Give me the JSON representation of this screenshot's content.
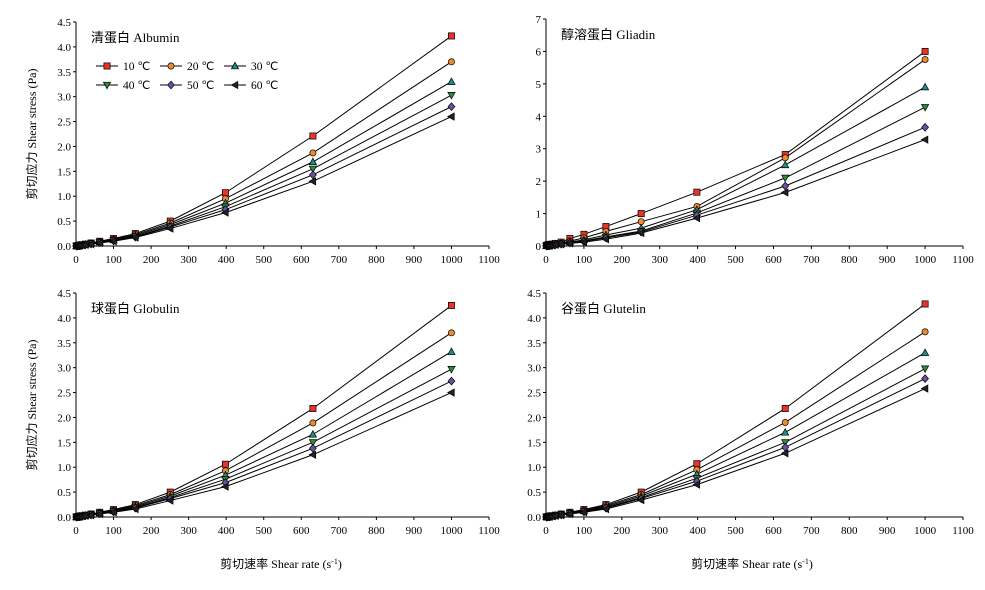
{
  "figure": {
    "xlabel": "剪切速率 Shear rate (s",
    "xlabel_sup": "-1",
    "xlabel_close": ")",
    "ylabel": "剪切应力 Shear stress (Pa)"
  },
  "legend_entries": [
    {
      "label": "10 ℃",
      "color": "#e8322c",
      "marker": "square"
    },
    {
      "label": "20 ℃",
      "color": "#f08a2c",
      "marker": "circle"
    },
    {
      "label": "30 ℃",
      "color": "#1f8f86",
      "marker": "triangle-up"
    },
    {
      "label": "40 ℃",
      "color": "#2e8b3a",
      "marker": "triangle-down"
    },
    {
      "label": "50 ℃",
      "color": "#6a4fa3",
      "marker": "diamond"
    },
    {
      "label": "60 ℃",
      "color": "#222222",
      "marker": "triangle-left"
    }
  ],
  "chart_data": [
    {
      "type": "line",
      "title": "清蛋白 Albumin",
      "xlim": [
        0,
        1100
      ],
      "ylim": [
        0,
        4.5
      ],
      "xticks": [
        0,
        100,
        200,
        300,
        400,
        500,
        600,
        700,
        800,
        900,
        1000,
        1100
      ],
      "yticks": [
        "0.0",
        "0.5",
        "1.0",
        "1.5",
        "2.0",
        "2.5",
        "3.0",
        "3.5",
        "4.0",
        "4.5"
      ],
      "x": [
        1,
        2,
        4,
        6,
        10,
        16,
        25,
        40,
        63,
        100,
        158,
        251,
        398,
        631,
        1000
      ],
      "series": [
        {
          "name": "10 ℃",
          "values": [
            0.001,
            0.003,
            0.006,
            0.009,
            0.015,
            0.024,
            0.037,
            0.06,
            0.095,
            0.15,
            0.25,
            0.5,
            1.07,
            2.21,
            4.22
          ]
        },
        {
          "name": "20 ℃",
          "values": [
            0.001,
            0.003,
            0.005,
            0.008,
            0.013,
            0.021,
            0.033,
            0.053,
            0.085,
            0.135,
            0.23,
            0.46,
            0.95,
            1.87,
            3.7
          ]
        },
        {
          "name": "30 ℃",
          "values": [
            0.001,
            0.002,
            0.005,
            0.007,
            0.012,
            0.019,
            0.03,
            0.048,
            0.077,
            0.122,
            0.21,
            0.43,
            0.86,
            1.69,
            3.3
          ]
        },
        {
          "name": "40 ℃",
          "values": [
            0.001,
            0.002,
            0.004,
            0.006,
            0.011,
            0.017,
            0.027,
            0.044,
            0.07,
            0.111,
            0.19,
            0.4,
            0.79,
            1.55,
            3.03
          ]
        },
        {
          "name": "50 ℃",
          "values": [
            0.001,
            0.002,
            0.004,
            0.006,
            0.01,
            0.016,
            0.025,
            0.04,
            0.065,
            0.103,
            0.18,
            0.38,
            0.73,
            1.43,
            2.8
          ]
        },
        {
          "name": "60 ℃",
          "values": [
            0.001,
            0.002,
            0.004,
            0.005,
            0.009,
            0.015,
            0.023,
            0.037,
            0.06,
            0.095,
            0.17,
            0.35,
            0.67,
            1.3,
            2.6
          ]
        }
      ]
    },
    {
      "type": "line",
      "title": "醇溶蛋白 Gliadin",
      "xlim": [
        0,
        1100
      ],
      "ylim": [
        0,
        7
      ],
      "xticks": [
        0,
        100,
        200,
        300,
        400,
        500,
        600,
        700,
        800,
        900,
        1000,
        1100
      ],
      "yticks": [
        "0",
        "1",
        "2",
        "3",
        "4",
        "5",
        "6",
        "7"
      ],
      "x": [
        1,
        2,
        4,
        6,
        10,
        16,
        25,
        40,
        63,
        100,
        158,
        251,
        398,
        631,
        1000
      ],
      "series": [
        {
          "name": "10 ℃",
          "values": [
            0.01,
            0.02,
            0.03,
            0.04,
            0.05,
            0.06,
            0.08,
            0.12,
            0.23,
            0.36,
            0.6,
            1.0,
            1.66,
            2.82,
            6.0
          ]
        },
        {
          "name": "20 ℃",
          "values": [
            0.005,
            0.01,
            0.015,
            0.02,
            0.03,
            0.04,
            0.06,
            0.09,
            0.15,
            0.25,
            0.45,
            0.75,
            1.22,
            2.72,
            5.75
          ]
        },
        {
          "name": "30 ℃",
          "values": [
            0.004,
            0.008,
            0.012,
            0.016,
            0.025,
            0.035,
            0.05,
            0.07,
            0.12,
            0.19,
            0.34,
            0.55,
            1.12,
            2.5,
            4.9
          ]
        },
        {
          "name": "40 ℃",
          "values": [
            0.003,
            0.006,
            0.01,
            0.014,
            0.02,
            0.03,
            0.045,
            0.06,
            0.1,
            0.16,
            0.28,
            0.46,
            1.02,
            2.1,
            4.28
          ]
        },
        {
          "name": "50 ℃",
          "values": [
            0.003,
            0.005,
            0.008,
            0.012,
            0.018,
            0.026,
            0.04,
            0.055,
            0.09,
            0.14,
            0.25,
            0.43,
            0.95,
            1.85,
            3.66
          ]
        },
        {
          "name": "60 ℃",
          "values": [
            0.002,
            0.004,
            0.007,
            0.01,
            0.015,
            0.022,
            0.035,
            0.05,
            0.08,
            0.12,
            0.21,
            0.4,
            0.86,
            1.65,
            3.28
          ]
        }
      ]
    },
    {
      "type": "line",
      "title": "球蛋白 Globulin",
      "xlim": [
        0,
        1100
      ],
      "ylim": [
        0,
        4.5
      ],
      "xticks": [
        0,
        100,
        200,
        300,
        400,
        500,
        600,
        700,
        800,
        900,
        1000,
        1100
      ],
      "yticks": [
        "0.0",
        "0.5",
        "1.0",
        "1.5",
        "2.0",
        "2.5",
        "3.0",
        "3.5",
        "4.0",
        "4.5"
      ],
      "x": [
        1,
        2,
        4,
        6,
        10,
        16,
        25,
        40,
        63,
        100,
        158,
        251,
        398,
        631,
        1000
      ],
      "series": [
        {
          "name": "10 ℃",
          "values": [
            0.001,
            0.003,
            0.006,
            0.009,
            0.015,
            0.024,
            0.037,
            0.06,
            0.095,
            0.15,
            0.25,
            0.5,
            1.06,
            2.18,
            4.25
          ]
        },
        {
          "name": "20 ℃",
          "values": [
            0.001,
            0.003,
            0.005,
            0.008,
            0.013,
            0.021,
            0.033,
            0.053,
            0.085,
            0.135,
            0.23,
            0.45,
            0.93,
            1.89,
            3.7
          ]
        },
        {
          "name": "30 ℃",
          "values": [
            0.001,
            0.002,
            0.005,
            0.007,
            0.012,
            0.019,
            0.03,
            0.048,
            0.077,
            0.122,
            0.21,
            0.42,
            0.84,
            1.66,
            3.32
          ]
        },
        {
          "name": "40 ℃",
          "values": [
            0.001,
            0.002,
            0.004,
            0.006,
            0.011,
            0.017,
            0.027,
            0.044,
            0.07,
            0.111,
            0.19,
            0.39,
            0.76,
            1.5,
            2.97
          ]
        },
        {
          "name": "50 ℃",
          "values": [
            0.001,
            0.002,
            0.004,
            0.006,
            0.01,
            0.016,
            0.025,
            0.04,
            0.065,
            0.103,
            0.18,
            0.37,
            0.69,
            1.38,
            2.73
          ]
        },
        {
          "name": "60 ℃",
          "values": [
            0.001,
            0.002,
            0.004,
            0.005,
            0.009,
            0.015,
            0.023,
            0.037,
            0.06,
            0.095,
            0.16,
            0.33,
            0.61,
            1.25,
            2.5
          ]
        }
      ]
    },
    {
      "type": "line",
      "title": "谷蛋白 Glutelin",
      "xlim": [
        0,
        1100
      ],
      "ylim": [
        0,
        4.5
      ],
      "xticks": [
        0,
        100,
        200,
        300,
        400,
        500,
        600,
        700,
        800,
        900,
        1000,
        1100
      ],
      "yticks": [
        "0.0",
        "0.5",
        "1.0",
        "1.5",
        "2.0",
        "2.5",
        "3.0",
        "3.5",
        "4.0",
        "4.5"
      ],
      "x": [
        1,
        2,
        4,
        6,
        10,
        16,
        25,
        40,
        63,
        100,
        158,
        251,
        398,
        631,
        1000
      ],
      "series": [
        {
          "name": "10 ℃",
          "values": [
            0.001,
            0.003,
            0.006,
            0.009,
            0.015,
            0.024,
            0.037,
            0.06,
            0.095,
            0.15,
            0.25,
            0.5,
            1.07,
            2.18,
            4.28
          ]
        },
        {
          "name": "20 ℃",
          "values": [
            0.001,
            0.003,
            0.005,
            0.008,
            0.013,
            0.021,
            0.033,
            0.053,
            0.085,
            0.135,
            0.23,
            0.45,
            0.95,
            1.9,
            3.72
          ]
        },
        {
          "name": "30 ℃",
          "values": [
            0.001,
            0.002,
            0.005,
            0.007,
            0.012,
            0.019,
            0.03,
            0.048,
            0.077,
            0.122,
            0.21,
            0.42,
            0.86,
            1.7,
            3.3
          ]
        },
        {
          "name": "40 ℃",
          "values": [
            0.001,
            0.002,
            0.004,
            0.006,
            0.011,
            0.017,
            0.027,
            0.044,
            0.07,
            0.111,
            0.19,
            0.39,
            0.78,
            1.5,
            2.98
          ]
        },
        {
          "name": "50 ℃",
          "values": [
            0.001,
            0.002,
            0.004,
            0.006,
            0.01,
            0.016,
            0.025,
            0.04,
            0.065,
            0.103,
            0.18,
            0.37,
            0.72,
            1.4,
            2.78
          ]
        },
        {
          "name": "60 ℃",
          "values": [
            0.001,
            0.002,
            0.004,
            0.005,
            0.009,
            0.015,
            0.023,
            0.037,
            0.06,
            0.095,
            0.16,
            0.34,
            0.65,
            1.28,
            2.58
          ]
        }
      ]
    }
  ]
}
